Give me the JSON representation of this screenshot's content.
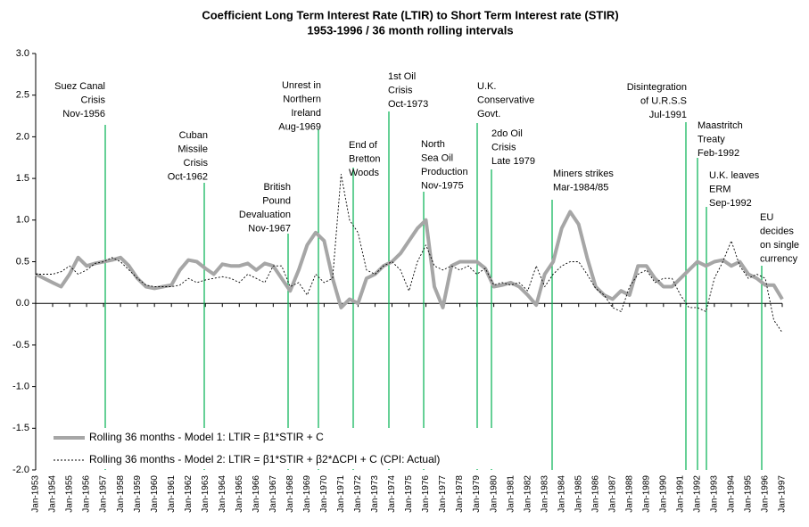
{
  "chart_data": {
    "type": "line",
    "title": "Coefficient Long Term Interest Rate (LTIR) to Short Term Interest rate (STIR)",
    "subtitle": "1953-1996 / 36 month rolling intervals",
    "x": [
      "Jan-1953",
      "Jul-1953",
      "Jan-1954",
      "Jul-1954",
      "Jan-1955",
      "Jul-1955",
      "Jan-1956",
      "Jul-1956",
      "Jan-1957",
      "Jul-1957",
      "Jan-1958",
      "Jul-1958",
      "Jan-1959",
      "Jul-1959",
      "Jan-1960",
      "Jul-1960",
      "Jan-1961",
      "Jul-1961",
      "Jan-1962",
      "Jul-1962",
      "Jan-1963",
      "Jul-1963",
      "Jan-1964",
      "Jul-1964",
      "Jan-1965",
      "Jul-1965",
      "Jan-1966",
      "Jul-1966",
      "Jan-1967",
      "Jul-1967",
      "Jan-1968",
      "Jul-1968",
      "Jan-1969",
      "Jul-1969",
      "Jan-1970",
      "Jul-1970",
      "Jan-1971",
      "Jul-1971",
      "Jan-1972",
      "Jul-1972",
      "Jan-1973",
      "Jul-1973",
      "Jan-1974",
      "Jul-1974",
      "Jan-1975",
      "Jul-1975",
      "Jan-1976",
      "Jul-1976",
      "Jan-1977",
      "Jul-1977",
      "Jan-1978",
      "Jul-1978",
      "Jan-1979",
      "Jul-1979",
      "Jan-1980",
      "Jul-1980",
      "Jan-1981",
      "Jul-1981",
      "Jan-1982",
      "Jul-1982",
      "Jan-1983",
      "Jul-1983",
      "Jan-1984",
      "Jul-1984",
      "Jan-1985",
      "Jul-1985",
      "Jan-1986",
      "Jul-1986",
      "Jan-1987",
      "Jul-1987",
      "Jan-1988",
      "Jul-1988",
      "Jan-1989",
      "Jul-1989",
      "Jan-1990",
      "Jul-1990",
      "Jan-1991",
      "Jul-1991",
      "Jan-1992",
      "Jul-1992",
      "Jan-1993",
      "Jul-1993",
      "Jan-1994",
      "Jul-1994",
      "Jan-1995",
      "Jul-1995",
      "Jan-1996",
      "Jul-1996",
      "Jan-1997"
    ],
    "series": [
      {
        "name": "Rolling 36 months - Model 1: LTIR = β1*STIR + C",
        "color": "#a6a6a6",
        "values": [
          0.35,
          0.3,
          0.25,
          0.2,
          0.35,
          0.55,
          0.45,
          0.48,
          0.5,
          0.52,
          0.55,
          0.45,
          0.3,
          0.2,
          0.18,
          0.2,
          0.22,
          0.4,
          0.52,
          0.5,
          0.42,
          0.35,
          0.47,
          0.45,
          0.45,
          0.48,
          0.4,
          0.48,
          0.45,
          0.3,
          0.15,
          0.4,
          0.7,
          0.85,
          0.75,
          0.3,
          -0.05,
          0.05,
          0.0,
          0.3,
          0.35,
          0.45,
          0.5,
          0.6,
          0.75,
          0.9,
          1.0,
          0.2,
          -0.05,
          0.45,
          0.5,
          0.5,
          0.5,
          0.42,
          0.2,
          0.22,
          0.25,
          0.2,
          0.1,
          -0.02,
          0.35,
          0.5,
          0.9,
          1.1,
          0.95,
          0.55,
          0.2,
          0.1,
          0.05,
          0.15,
          0.1,
          0.45,
          0.45,
          0.3,
          0.2,
          0.2,
          0.3,
          0.4,
          0.5,
          0.45,
          0.5,
          0.52,
          0.45,
          0.5,
          0.35,
          0.3,
          0.22,
          0.22,
          0.05
        ]
      },
      {
        "name": "Rolling 36 months - Model 2: LTIR = β1*STIR + β2*ΔCPI + C  (CPI: Actual)",
        "color": "#000000",
        "values": [
          0.35,
          0.35,
          0.35,
          0.38,
          0.45,
          0.35,
          0.4,
          0.48,
          0.5,
          0.55,
          0.5,
          0.4,
          0.3,
          0.22,
          0.2,
          0.2,
          0.2,
          0.22,
          0.3,
          0.25,
          0.28,
          0.3,
          0.32,
          0.3,
          0.25,
          0.35,
          0.3,
          0.25,
          0.45,
          0.45,
          0.2,
          0.25,
          0.1,
          0.35,
          0.25,
          0.3,
          1.55,
          1.0,
          0.85,
          0.4,
          0.35,
          0.45,
          0.5,
          0.4,
          0.15,
          0.5,
          0.7,
          0.45,
          0.4,
          0.45,
          0.4,
          0.45,
          0.35,
          0.42,
          0.22,
          0.25,
          0.22,
          0.25,
          0.15,
          0.45,
          0.2,
          0.35,
          0.45,
          0.5,
          0.5,
          0.35,
          0.18,
          0.1,
          -0.05,
          -0.1,
          0.2,
          0.35,
          0.4,
          0.25,
          0.3,
          0.3,
          0.1,
          -0.05,
          -0.05,
          -0.1,
          0.3,
          0.5,
          0.75,
          0.45,
          0.3,
          0.35,
          0.3,
          -0.2,
          -0.35
        ]
      }
    ],
    "xlim": [
      "Jan-1953",
      "Jan-1997"
    ],
    "xticks": [
      "Jan-1953",
      "Jan-1954",
      "Jan-1955",
      "Jan-1956",
      "Jan-1957",
      "Jan-1958",
      "Jan-1959",
      "Jan-1960",
      "Jan-1961",
      "Jan-1962",
      "Jan-1963",
      "Jan-1964",
      "Jan-1965",
      "Jan-1966",
      "Jan-1967",
      "Jan-1968",
      "Jan-1969",
      "Jan-1970",
      "Jan-1971",
      "Jan-1972",
      "Jan-1973",
      "Jan-1974",
      "Jan-1975",
      "Jan-1976",
      "Jan-1977",
      "Jan-1978",
      "Jan-1979",
      "Jan-1980",
      "Jan-1981",
      "Jan-1982",
      "Jan-1983",
      "Jan-1984",
      "Jan-1985",
      "Jan-1986",
      "Jan-1987",
      "Jan-1988",
      "Jan-1989",
      "Jan-1990",
      "Jan-1991",
      "Jan-1992",
      "Jan-1993",
      "Jan-1994",
      "Jan-1995",
      "Jan-1996",
      "Jan-1997"
    ],
    "ylim": [
      -2,
      3
    ],
    "yticks": [
      {
        "value": 3,
        "label": "3.0"
      },
      {
        "value": 2.5,
        "label": "2.5"
      },
      {
        "value": 2,
        "label": "2.0"
      },
      {
        "value": 1.5,
        "label": "1.5"
      },
      {
        "value": 1,
        "label": "1.0"
      },
      {
        "value": 0.5,
        "label": "0.5"
      },
      {
        "value": 0,
        "label": "0.0"
      },
      {
        "value": -0.5,
        "label": "-0.5"
      },
      {
        "value": -1,
        "label": "-1.0"
      },
      {
        "value": -1.5,
        "label": "-1.5"
      },
      {
        "value": -2,
        "label": "-2.0"
      }
    ],
    "grid": false,
    "legend": "lower left",
    "annotation_color": "#00b050",
    "annotations": [
      {
        "lines": [
          "Suez Canal",
          "Crisis",
          "Nov-1956"
        ]
      },
      {
        "lines": [
          "Cuban",
          "Missile",
          "Crisis",
          "Oct-1962"
        ]
      },
      {
        "lines": [
          "British",
          "Pound",
          "Devaluation",
          "Nov-1967"
        ]
      },
      {
        "lines": [
          "Unrest in",
          "Northern",
          "Ireland",
          "Aug-1969"
        ]
      },
      {
        "lines": [
          "End of",
          "Bretton",
          "Woods"
        ]
      },
      {
        "lines": [
          "1st Oil",
          "Crisis",
          "Oct-1973"
        ]
      },
      {
        "lines": [
          "North",
          "Sea Oil",
          "Production",
          "Nov-1975"
        ]
      },
      {
        "lines": [
          "U.K.",
          "Conservative",
          "Govt."
        ]
      },
      {
        "lines": [
          "2do Oil",
          "Crisis",
          "Late 1979"
        ]
      },
      {
        "lines": [
          "Miners strikes",
          "Mar-1984/85"
        ]
      },
      {
        "lines": [
          "Disintegration",
          "of U.R.S.S",
          "Jul-1991"
        ]
      },
      {
        "lines": [
          "Maastritch",
          "Treaty",
          "Feb-1992"
        ]
      },
      {
        "lines": [
          "U.K. leaves",
          "ERM",
          "Sep-1992"
        ]
      },
      {
        "lines": [
          "EU",
          "decides",
          "on single",
          "currency"
        ]
      }
    ]
  }
}
